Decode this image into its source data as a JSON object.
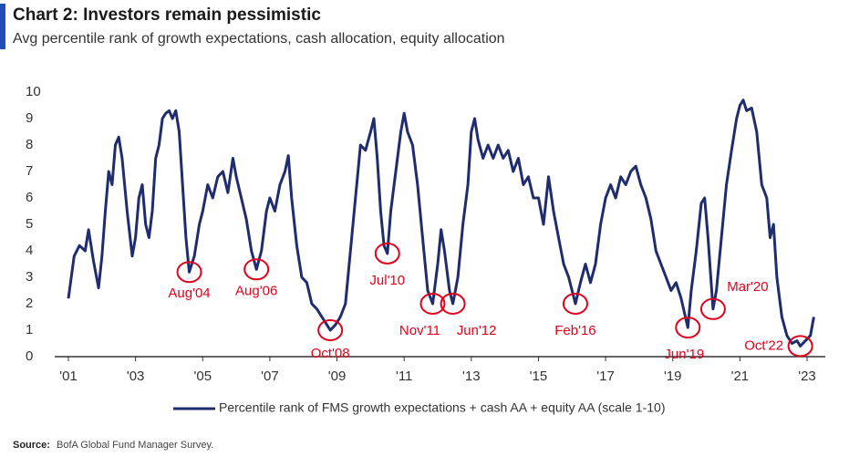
{
  "chart_data": {
    "type": "line",
    "title": "Chart 2: Investors remain pessimistic",
    "subtitle": "Avg percentile rank of growth expectations, cash allocation, equity allocation",
    "source_label": "Source:",
    "source": "BofA Global Fund Manager Survey.",
    "xlim": [
      2001,
      2023
    ],
    "xticks": [
      {
        "value": 2001,
        "label": "'01"
      },
      {
        "value": 2003,
        "label": "'03"
      },
      {
        "value": 2005,
        "label": "'05"
      },
      {
        "value": 2007,
        "label": "'07"
      },
      {
        "value": 2009,
        "label": "'09"
      },
      {
        "value": 2011,
        "label": "'11"
      },
      {
        "value": 2013,
        "label": "'13"
      },
      {
        "value": 2015,
        "label": "'15"
      },
      {
        "value": 2017,
        "label": "'17"
      },
      {
        "value": 2019,
        "label": "'19"
      },
      {
        "value": 2021,
        "label": "'21"
      },
      {
        "value": 2023,
        "label": "'23"
      }
    ],
    "ylim": [
      0,
      10
    ],
    "yticks": [
      0,
      1,
      2,
      3,
      4,
      5,
      6,
      7,
      8,
      9,
      10
    ],
    "grid": false,
    "legend": "bottom",
    "series": [
      {
        "name": "Percentile rank of FMS growth expectations + cash AA + equity AA (scale 1-10)",
        "color": "#1f2d6e",
        "x": [
          2001.0,
          2001.17,
          2001.33,
          2001.5,
          2001.6,
          2001.75,
          2001.9,
          2002.0,
          2002.1,
          2002.2,
          2002.3,
          2002.4,
          2002.5,
          2002.6,
          2002.75,
          2002.9,
          2003.0,
          2003.1,
          2003.2,
          2003.3,
          2003.4,
          2003.5,
          2003.6,
          2003.7,
          2003.8,
          2003.9,
          2004.0,
          2004.1,
          2004.2,
          2004.3,
          2004.4,
          2004.5,
          2004.6,
          2004.75,
          2004.9,
          2005.0,
          2005.15,
          2005.3,
          2005.45,
          2005.6,
          2005.75,
          2005.9,
          2006.0,
          2006.15,
          2006.3,
          2006.45,
          2006.6,
          2006.75,
          2006.9,
          2007.0,
          2007.15,
          2007.3,
          2007.45,
          2007.55,
          2007.65,
          2007.8,
          2007.95,
          2008.1,
          2008.25,
          2008.4,
          2008.55,
          2008.7,
          2008.8,
          2008.95,
          2009.1,
          2009.25,
          2009.4,
          2009.55,
          2009.7,
          2009.85,
          2010.0,
          2010.1,
          2010.2,
          2010.3,
          2010.4,
          2010.5,
          2010.6,
          2010.75,
          2010.9,
          2011.0,
          2011.1,
          2011.25,
          2011.4,
          2011.55,
          2011.7,
          2011.85,
          2012.0,
          2012.1,
          2012.2,
          2012.35,
          2012.45,
          2012.6,
          2012.75,
          2012.9,
          2013.0,
          2013.1,
          2013.2,
          2013.35,
          2013.5,
          2013.65,
          2013.8,
          2013.95,
          2014.1,
          2014.25,
          2014.4,
          2014.55,
          2014.7,
          2014.85,
          2015.0,
          2015.15,
          2015.3,
          2015.45,
          2015.6,
          2015.75,
          2015.9,
          2016.1,
          2016.25,
          2016.4,
          2016.55,
          2016.7,
          2016.85,
          2017.0,
          2017.15,
          2017.3,
          2017.45,
          2017.6,
          2017.75,
          2017.9,
          2018.05,
          2018.2,
          2018.35,
          2018.5,
          2018.65,
          2018.8,
          2018.95,
          2019.1,
          2019.25,
          2019.45,
          2019.55,
          2019.7,
          2019.85,
          2019.95,
          2020.05,
          2020.2,
          2020.3,
          2020.45,
          2020.6,
          2020.75,
          2020.9,
          2021.0,
          2021.1,
          2021.2,
          2021.35,
          2021.5,
          2021.65,
          2021.8,
          2021.9,
          2022.0,
          2022.1,
          2022.25,
          2022.4,
          2022.55,
          2022.7,
          2022.8,
          2022.95,
          2023.1,
          2023.2
        ],
        "values": [
          2.2,
          3.8,
          4.2,
          4.0,
          4.8,
          3.6,
          2.6,
          3.8,
          5.5,
          7.0,
          6.5,
          8.0,
          8.3,
          7.5,
          5.5,
          3.8,
          4.5,
          6.0,
          6.5,
          5.0,
          4.5,
          5.5,
          7.5,
          8.0,
          9.0,
          9.2,
          9.3,
          9.0,
          9.3,
          8.5,
          6.5,
          4.5,
          3.2,
          3.8,
          5.0,
          5.5,
          6.5,
          6.0,
          6.8,
          7.0,
          6.2,
          7.5,
          6.8,
          6.0,
          5.2,
          4.0,
          3.3,
          4.0,
          5.5,
          6.0,
          5.5,
          6.5,
          7.0,
          7.6,
          6.0,
          4.2,
          3.0,
          2.8,
          2.0,
          1.8,
          1.5,
          1.2,
          1.0,
          1.2,
          1.5,
          2.0,
          4.0,
          6.0,
          8.0,
          7.8,
          8.5,
          9.0,
          7.5,
          5.5,
          4.2,
          3.9,
          5.5,
          7.0,
          8.5,
          9.2,
          8.5,
          8.0,
          6.5,
          4.5,
          2.5,
          2.0,
          3.5,
          4.8,
          4.0,
          2.5,
          2.0,
          3.0,
          5.0,
          6.5,
          8.5,
          9.0,
          8.2,
          7.5,
          8.0,
          7.5,
          8.0,
          7.5,
          7.8,
          7.0,
          7.5,
          6.5,
          6.8,
          6.0,
          6.0,
          5.0,
          6.8,
          5.5,
          4.5,
          3.5,
          3.0,
          2.0,
          2.8,
          3.5,
          2.8,
          3.5,
          5.0,
          6.0,
          6.5,
          6.0,
          6.8,
          6.5,
          7.0,
          7.2,
          6.5,
          6.0,
          5.2,
          4.0,
          3.5,
          3.0,
          2.5,
          2.8,
          2.2,
          1.1,
          2.5,
          4.0,
          5.8,
          6.0,
          4.5,
          1.8,
          2.5,
          4.5,
          6.5,
          7.8,
          9.0,
          9.5,
          9.7,
          9.3,
          9.4,
          8.5,
          6.5,
          6.0,
          4.5,
          5.0,
          3.0,
          1.5,
          0.8,
          0.5,
          0.6,
          0.4,
          0.6,
          0.8,
          1.5
        ]
      }
    ],
    "annotations": [
      {
        "label": "Aug'04",
        "x": 2004.6,
        "y": 3.2
      },
      {
        "label": "Aug'06",
        "x": 2006.6,
        "y": 3.3
      },
      {
        "label": "Oct'08",
        "x": 2008.8,
        "y": 1.0
      },
      {
        "label": "Jul'10",
        "x": 2010.5,
        "y": 3.9
      },
      {
        "label": "Nov'11",
        "x": 2011.85,
        "y": 2.0
      },
      {
        "label": "Jun'12",
        "x": 2012.45,
        "y": 2.0
      },
      {
        "label": "Feb'16",
        "x": 2016.1,
        "y": 2.0
      },
      {
        "label": "Jun'19",
        "x": 2019.45,
        "y": 1.1
      },
      {
        "label": "Mar'20",
        "x": 2020.2,
        "y": 1.8
      },
      {
        "label": "Oct'22",
        "x": 2022.8,
        "y": 0.4
      }
    ]
  }
}
